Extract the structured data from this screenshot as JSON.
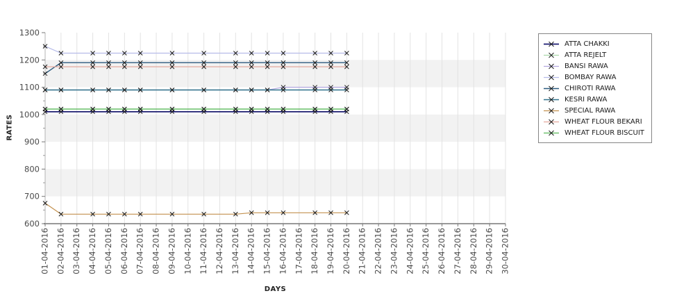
{
  "page": {
    "background": "#ffffff"
  },
  "chart_data": {
    "type": "line",
    "title": "",
    "xlabel": "DAYS",
    "ylabel": "RATES",
    "ylim": [
      600,
      1300
    ],
    "y_tick_step": 100,
    "grid": "vertical-lines with alternating horizontal bands",
    "legend_position": "top-right",
    "marker": "x",
    "band_color": "#f2f2f2",
    "gridline_color": "#e3e3e3",
    "axis_color": "#999999",
    "tick_label_color": "#4a4a4a",
    "marker_color": "#1a1a1a",
    "x_categories": [
      "01-04-2016",
      "02-04-2016",
      "03-04-2016",
      "04-04-2016",
      "05-04-2016",
      "06-04-2016",
      "07-04-2016",
      "08-04-2016",
      "09-04-2016",
      "10-04-2016",
      "11-04-2016",
      "12-04-2016",
      "13-04-2016",
      "14-04-2016",
      "15-04-2016",
      "16-04-2016",
      "17-04-2016",
      "18-04-2016",
      "19-04-2016",
      "20-04-2016",
      "21-04-2016",
      "22-04-2016",
      "23-04-2016",
      "24-04-2016",
      "25-04-2016",
      "26-04-2016",
      "27-04-2016",
      "28-04-2016",
      "29-04-2016",
      "30-04-2016"
    ],
    "data_days": [
      1,
      2,
      4,
      5,
      6,
      7,
      9,
      11,
      13,
      14,
      15,
      16,
      18,
      19,
      20
    ],
    "series": [
      {
        "name": "ATTA CHAKKI",
        "color": "#1b1b70",
        "width": 1.8,
        "values": [
          1010,
          1010,
          1010,
          1010,
          1010,
          1010,
          1010,
          1010,
          1010,
          1010,
          1010,
          1010,
          1010,
          1010,
          1010
        ]
      },
      {
        "name": "ATTA REJELT",
        "color": "#abd9ab",
        "width": 1.2,
        "values": [
          1020,
          1020,
          1020,
          1020,
          1020,
          1020,
          1020,
          1020,
          1020,
          1020,
          1020,
          1020,
          1020,
          1020,
          1020
        ]
      },
      {
        "name": "BANSI RAWA",
        "color": "#b2a7df",
        "width": 1.2,
        "values": [
          1090,
          1090,
          1090,
          1090,
          1090,
          1090,
          1090,
          1090,
          1090,
          1090,
          1090,
          1100,
          1100,
          1100,
          1100
        ]
      },
      {
        "name": "BOMBAY RAWA",
        "color": "#b6bbe9",
        "width": 1.2,
        "values": [
          1250,
          1225,
          1225,
          1225,
          1225,
          1225,
          1225,
          1225,
          1225,
          1225,
          1225,
          1225,
          1225,
          1225,
          1225
        ]
      },
      {
        "name": "CHIROTI RAWA",
        "color": "#2b5a7e",
        "width": 1.4,
        "values": [
          1150,
          1190,
          1190,
          1190,
          1190,
          1190,
          1190,
          1190,
          1190,
          1190,
          1190,
          1190,
          1190,
          1190,
          1190
        ]
      },
      {
        "name": "KESRI RAWA",
        "color": "#2f718a",
        "width": 1.4,
        "values": [
          1090,
          1090,
          1090,
          1090,
          1090,
          1090,
          1090,
          1090,
          1090,
          1090,
          1090,
          1090,
          1090,
          1090,
          1090
        ]
      },
      {
        "name": "SPECIAL RAWA",
        "color": "#c3914f",
        "width": 1.2,
        "values": [
          675,
          635,
          635,
          635,
          635,
          635,
          635,
          635,
          635,
          640,
          640,
          640,
          640,
          640,
          640
        ]
      },
      {
        "name": "WHEAT FLOUR BEKARI",
        "color": "#e3a89c",
        "width": 1.2,
        "values": [
          1175,
          1175,
          1175,
          1175,
          1175,
          1175,
          1175,
          1175,
          1175,
          1175,
          1175,
          1175,
          1175,
          1175,
          1175
        ]
      },
      {
        "name": "WHEAT FLOUR BISCUIT",
        "color": "#58b858",
        "width": 1.3,
        "values": [
          1020,
          1020,
          1020,
          1020,
          1020,
          1020,
          1020,
          1020,
          1020,
          1020,
          1020,
          1020,
          1020,
          1020,
          1020
        ]
      }
    ]
  }
}
